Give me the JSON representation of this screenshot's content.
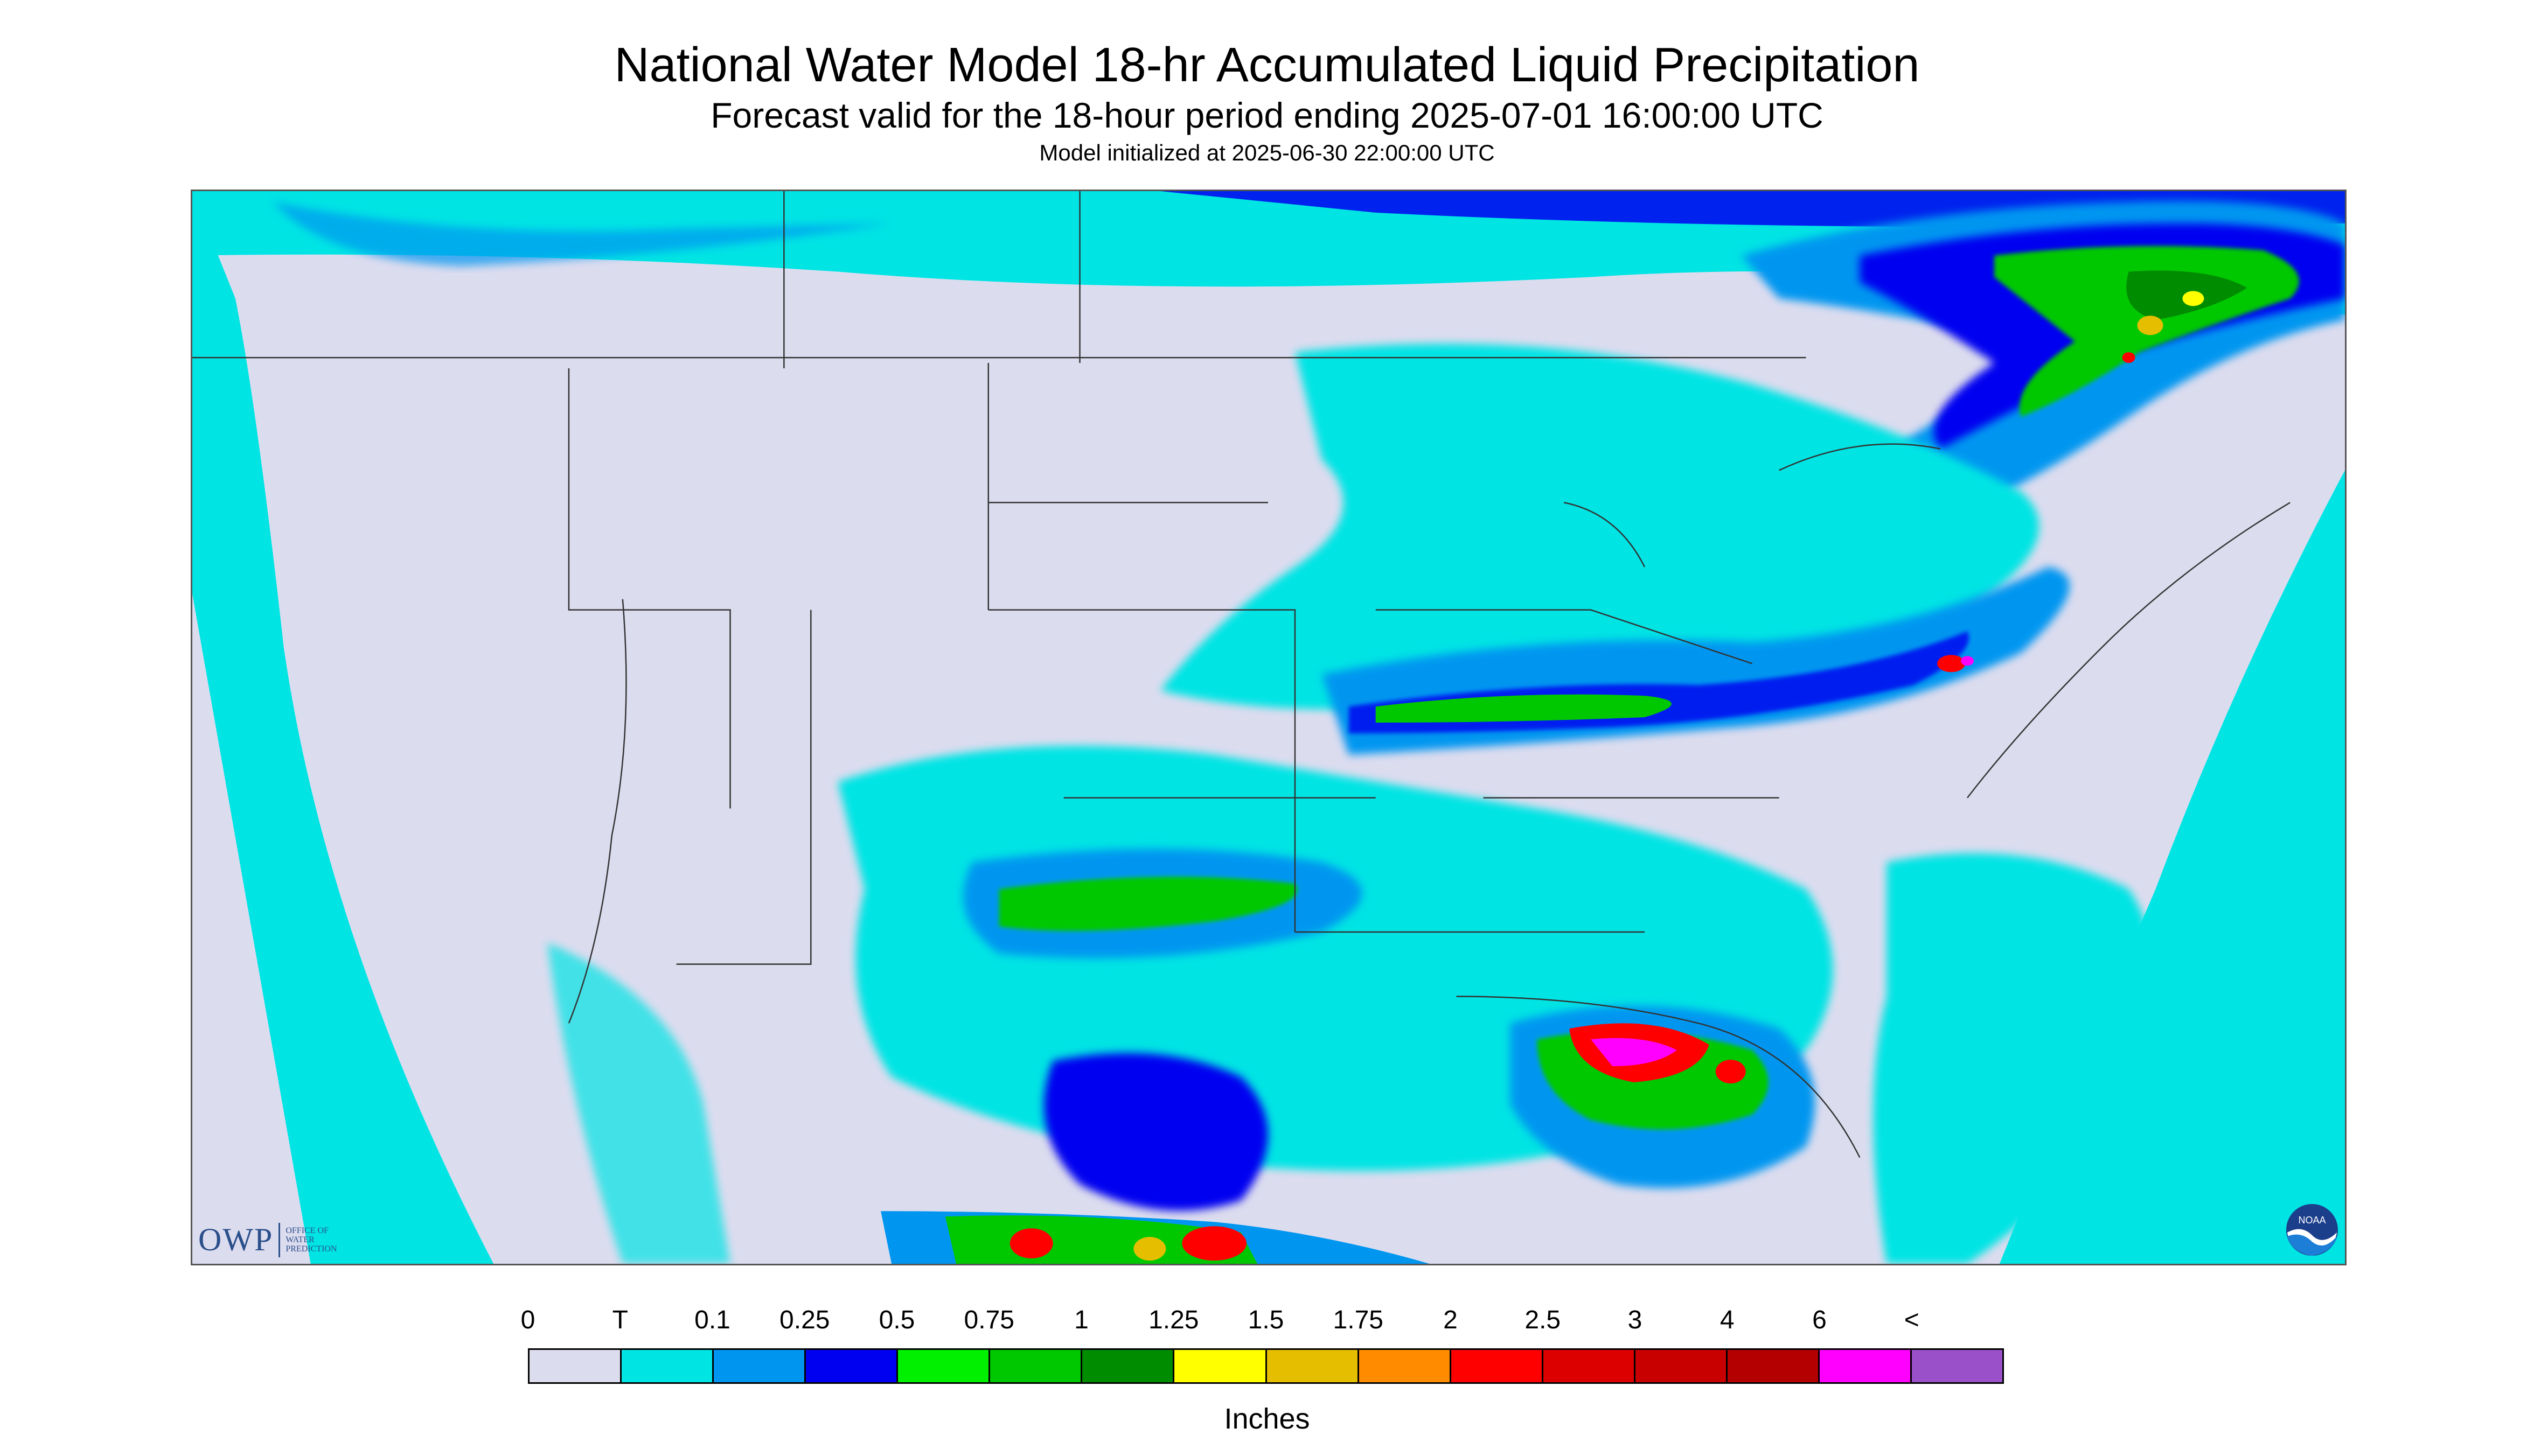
{
  "header": {
    "title": "National Water Model 18-hr Accumulated Liquid Precipitation",
    "subtitle": "Forecast valid for the 18-hour period ending 2025-07-01 16:00:00 UTC",
    "init": "Model initialized at 2025-06-30 22:00:00 UTC"
  },
  "logos": {
    "owp_mark": "OWP",
    "owp_sub": [
      "OFFICE OF",
      "WATER",
      "PREDICTION"
    ],
    "noaa_text": "NOAA"
  },
  "legend": {
    "labels": [
      "0",
      "T",
      "0.1",
      "0.25",
      "0.5",
      "0.75",
      "1",
      "1.25",
      "1.5",
      "1.75",
      "2",
      "2.5",
      "3",
      "4",
      "6",
      "<"
    ],
    "colors": [
      "#dcdcef",
      "#00e4e4",
      "#0096f0",
      "#0000f0",
      "#00f000",
      "#00c800",
      "#008c00",
      "#ffff00",
      "#e6be00",
      "#ff8c00",
      "#ff0000",
      "#dc0000",
      "#c80000",
      "#b40000",
      "#ff00ff",
      "#9a50c8"
    ],
    "units": "Inches"
  }
}
